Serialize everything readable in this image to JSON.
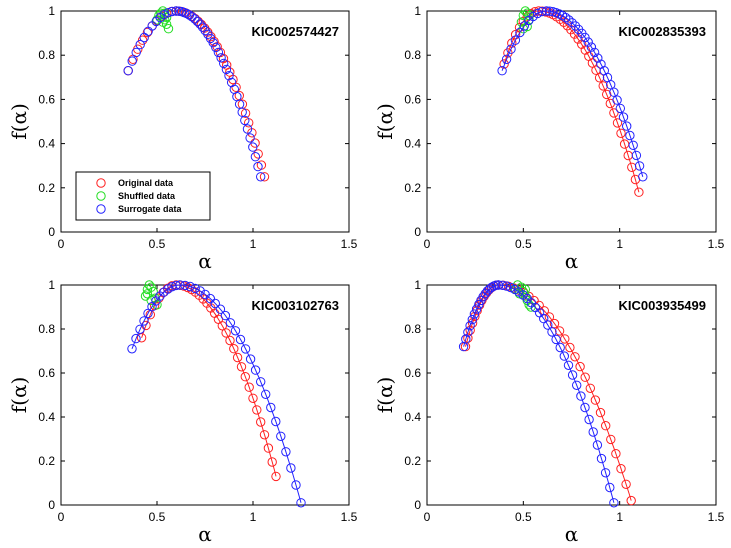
{
  "colors": {
    "original": "#ff2020",
    "shuffled": "#22dd22",
    "surrogate": "#2222ff",
    "axis": "#000000"
  },
  "legend": {
    "placement": "lower-left",
    "panel": 0,
    "entries": [
      "Original data",
      "Shuffled data",
      "Surrogate data"
    ]
  },
  "chart_data": [
    {
      "type": "scatter",
      "title": "KIC002574427",
      "xlabel": "α",
      "ylabel": "f(α)",
      "xlim": [
        0,
        1.5
      ],
      "ylim": [
        0,
        1
      ],
      "xticks": [
        "0",
        "0.5",
        "1",
        "1.5"
      ],
      "yticks": [
        "0",
        "0.2",
        "0.4",
        "0.6",
        "0.8",
        "1"
      ],
      "series": [
        {
          "name": "Original data",
          "color": "#ff2020",
          "fit": false,
          "curve": {
            "a0": 0.35,
            "amax": 0.6,
            "a1": 1.06,
            "y0": 0.73,
            "y1": 0.25
          },
          "n0": 10,
          "n1": 28
        },
        {
          "name": "Shuffled data",
          "color": "#22dd22",
          "fit": false,
          "points": [
            [
              0.5,
              0.96
            ],
            [
              0.51,
              0.98
            ],
            [
              0.52,
              0.99
            ],
            [
              0.53,
              1.0
            ],
            [
              0.54,
              0.99
            ],
            [
              0.54,
              0.96
            ],
            [
              0.55,
              0.94
            ],
            [
              0.56,
              0.92
            ],
            [
              0.55,
              0.97
            ],
            [
              0.53,
              0.95
            ]
          ]
        },
        {
          "name": "Surrogate data",
          "color": "#2222ff",
          "fit": false,
          "curve": {
            "a0": 0.35,
            "amax": 0.6,
            "a1": 1.04,
            "y0": 0.73,
            "y1": 0.25
          },
          "n0": 12,
          "n1": 32
        }
      ]
    },
    {
      "type": "scatter",
      "title": "KIC002835393",
      "xlabel": "α",
      "ylabel": "f(α)",
      "xlim": [
        0,
        1.5
      ],
      "ylim": [
        0,
        1
      ],
      "xticks": [
        "0",
        "0.5",
        "1",
        "1.5"
      ],
      "yticks": [
        "0",
        "0.2",
        "0.4",
        "0.6",
        "0.8",
        "1"
      ],
      "series": [
        {
          "name": "Original data",
          "color": "#ff2020",
          "fit": true,
          "curve": {
            "a0": 0.4,
            "amax": 0.58,
            "a1": 1.1,
            "y0": 0.76,
            "y1": 0.18
          },
          "n0": 9,
          "n1": 28
        },
        {
          "name": "Shuffled data",
          "color": "#22dd22",
          "fit": false,
          "points": [
            [
              0.49,
              0.95
            ],
            [
              0.5,
              0.98
            ],
            [
              0.51,
              1.0
            ],
            [
              0.52,
              0.99
            ],
            [
              0.53,
              0.96
            ],
            [
              0.52,
              0.93
            ],
            [
              0.5,
              0.92
            ],
            [
              0.53,
              0.98
            ]
          ]
        },
        {
          "name": "Surrogate data",
          "color": "#2222ff",
          "fit": true,
          "curve": {
            "a0": 0.39,
            "amax": 0.62,
            "a1": 1.12,
            "y0": 0.73,
            "y1": 0.25
          },
          "n0": 10,
          "n1": 30
        }
      ]
    },
    {
      "type": "scatter",
      "title": "KIC003102763",
      "xlabel": "α",
      "ylabel": "f(α)",
      "xlim": [
        0,
        1.5
      ],
      "ylim": [
        0,
        1
      ],
      "xticks": [
        "0",
        "0.5",
        "1",
        "1.5"
      ],
      "yticks": [
        "0",
        "0.2",
        "0.4",
        "0.6",
        "0.8",
        "1"
      ],
      "series": [
        {
          "name": "Original data",
          "color": "#ff2020",
          "fit": true,
          "curve": {
            "a0": 0.42,
            "amax": 0.6,
            "a1": 1.12,
            "y0": 0.76,
            "y1": 0.13
          },
          "n0": 8,
          "n1": 26
        },
        {
          "name": "Shuffled data",
          "color": "#22dd22",
          "fit": false,
          "points": [
            [
              0.44,
              0.95
            ],
            [
              0.45,
              0.98
            ],
            [
              0.46,
              1.0
            ],
            [
              0.47,
              0.99
            ],
            [
              0.48,
              0.97
            ],
            [
              0.49,
              0.94
            ],
            [
              0.5,
              0.91
            ],
            [
              0.47,
              0.93
            ],
            [
              0.45,
              0.96
            ]
          ]
        },
        {
          "name": "Surrogate data",
          "color": "#2222ff",
          "fit": true,
          "curve": {
            "a0": 0.37,
            "amax": 0.62,
            "a1": 1.25,
            "y0": 0.71,
            "y1": 0.01
          },
          "n0": 12,
          "n1": 24
        }
      ]
    },
    {
      "type": "scatter",
      "title": "KIC003935499",
      "xlabel": "α",
      "ylabel": "f(α)",
      "xlim": [
        0,
        1.5
      ],
      "ylim": [
        0,
        1
      ],
      "xticks": [
        "0",
        "0.5",
        "1",
        "1.5"
      ],
      "yticks": [
        "0",
        "0.2",
        "0.4",
        "0.6",
        "0.8",
        "1"
      ],
      "series": [
        {
          "name": "Original data",
          "color": "#ff2020",
          "fit": true,
          "curve": {
            "a0": 0.2,
            "amax": 0.37,
            "a1": 1.06,
            "y0": 0.72,
            "y1": 0.02
          },
          "n0": 14,
          "n1": 26
        },
        {
          "name": "Shuffled data",
          "color": "#22dd22",
          "fit": false,
          "points": [
            [
              0.46,
              0.98
            ],
            [
              0.47,
              1.0
            ],
            [
              0.49,
              0.99
            ],
            [
              0.5,
              0.97
            ],
            [
              0.51,
              0.95
            ],
            [
              0.52,
              0.93
            ],
            [
              0.53,
              0.91
            ],
            [
              0.54,
              0.9
            ],
            [
              0.48,
              0.96
            ],
            [
              0.51,
              0.98
            ]
          ]
        },
        {
          "name": "Surrogate data",
          "color": "#2222ff",
          "fit": true,
          "curve": {
            "a0": 0.19,
            "amax": 0.37,
            "a1": 0.97,
            "y0": 0.72,
            "y1": 0.01
          },
          "n0": 16,
          "n1": 28
        }
      ]
    }
  ]
}
